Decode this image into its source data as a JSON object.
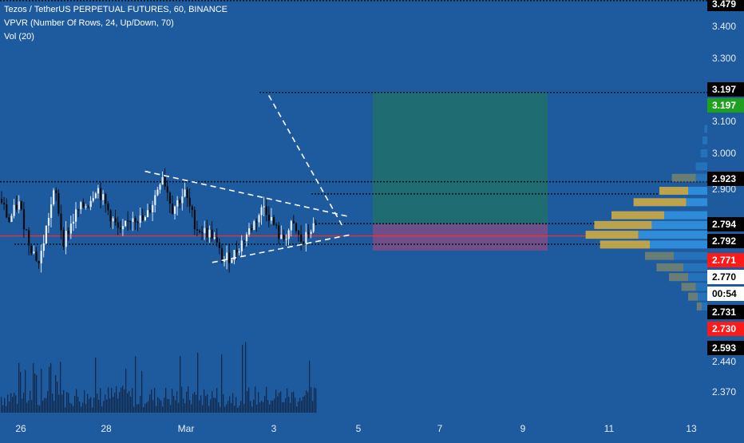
{
  "header": {
    "title": "Tezos / TetherUS PERPETUAL FUTURES, 60, BINANCE",
    "indicator1": "VPVR (Number Of Rows, 24, Up/Down, 70)",
    "indicator2": "Vol (20)"
  },
  "colors": {
    "background": "#1e5a9e",
    "up_candle": "#e6f0ff",
    "down_candle": "#0a0a0a",
    "poc_line": "#ff2a2a",
    "profit_zone": "#1f6e6e",
    "loss_zone": "#7d4e86",
    "vp_up": "#2f8fdc",
    "vp_down": "#c6a847",
    "dashed_line": "#ffffff",
    "level_line": "#0a0a0a"
  },
  "chart_data": {
    "type": "candlestick",
    "symbol": "Tezos / TetherUS PERPETUAL FUTURES",
    "interval": "60",
    "exchange": "BINANCE",
    "price_axis": {
      "ticks": [
        "3.400",
        "3.300",
        "3.100",
        "3.000",
        "2.900",
        "2.440",
        "2.370"
      ],
      "badges": [
        {
          "label": "3.479",
          "bg": "#000000",
          "fg": "#ffffff"
        },
        {
          "label": "3.197",
          "bg": "#000000",
          "fg": "#ffffff"
        },
        {
          "label": "3.197",
          "bg": "#1fa01f",
          "fg": "#ffffff"
        },
        {
          "label": "2.923",
          "bg": "#000000",
          "fg": "#ffffff"
        },
        {
          "label": "2.794",
          "bg": "#000000",
          "fg": "#ffffff"
        },
        {
          "label": "2.792",
          "bg": "#000000",
          "fg": "#ffffff"
        },
        {
          "label": "2.771",
          "bg": "#ff1a1a",
          "fg": "#ffffff"
        },
        {
          "label": "2.770",
          "bg": "#ffffff",
          "fg": "#000000"
        },
        {
          "label": "00:54",
          "bg": "#ffffff",
          "fg": "#000000"
        },
        {
          "label": "2.731",
          "bg": "#000000",
          "fg": "#ffffff"
        },
        {
          "label": "2.730",
          "bg": "#ff1a1a",
          "fg": "#ffffff"
        },
        {
          "label": "2.593",
          "bg": "#000000",
          "fg": "#ffffff"
        }
      ]
    },
    "time_axis": {
      "labels": [
        "26",
        "28",
        "Mar",
        "3",
        "5",
        "7",
        "9",
        "11",
        "13"
      ]
    },
    "horizontal_levels": [
      3.479,
      3.197,
      2.923,
      2.794,
      2.731
    ],
    "poc_price": 2.771,
    "position": {
      "target": 3.197,
      "entry": 2.794,
      "stop": 2.731
    },
    "triangle": {
      "upper_line": [
        [
          0.205,
          2.955
        ],
        [
          0.495,
          2.815
        ]
      ],
      "lower_line": [
        [
          0.3,
          2.675
        ],
        [
          0.495,
          2.76
        ]
      ],
      "descending_line": [
        [
          0.38,
          3.188
        ],
        [
          0.48,
          2.79
        ]
      ]
    },
    "volume_profile_rows": [
      {
        "price": 3.085,
        "up": 0.0,
        "down": 0.03
      },
      {
        "price": 3.05,
        "up": 0.0,
        "down": 0.05
      },
      {
        "price": 3.01,
        "up": 0.0,
        "down": 0.07
      },
      {
        "price": 2.97,
        "up": 0.0,
        "down": 0.12
      },
      {
        "price": 2.935,
        "up": 0.25,
        "down": 0.12
      },
      {
        "price": 2.895,
        "up": 0.3,
        "down": 0.2
      },
      {
        "price": 2.86,
        "up": 0.55,
        "down": 0.22
      },
      {
        "price": 2.82,
        "up": 0.55,
        "down": 0.45
      },
      {
        "price": 2.79,
        "up": 0.6,
        "down": 0.58
      },
      {
        "price": 2.76,
        "up": 0.55,
        "down": 0.72
      },
      {
        "price": 2.73,
        "up": 0.52,
        "down": 0.6
      },
      {
        "price": 2.695,
        "up": 0.3,
        "down": 0.35
      },
      {
        "price": 2.66,
        "up": 0.28,
        "down": 0.25
      },
      {
        "price": 2.63,
        "up": 0.2,
        "down": 0.2
      },
      {
        "price": 2.6,
        "up": 0.15,
        "down": 0.12
      },
      {
        "price": 2.57,
        "up": 0.1,
        "down": 0.1
      },
      {
        "price": 2.54,
        "up": 0.05,
        "down": 0.06
      }
    ]
  }
}
